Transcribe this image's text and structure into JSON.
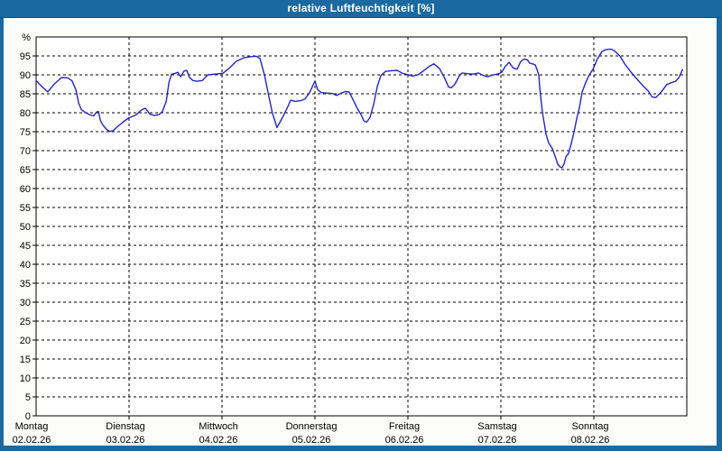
{
  "window": {
    "title": "relative Luftfeuchtigkeit [%]"
  },
  "colors": {
    "frame": "#1a69a0",
    "frame_edge_dark": "#11517e",
    "title_text": "#ffffff",
    "content_bg": "#fcfdfa",
    "plot_bg": "#ffffff",
    "grid": "#000000",
    "axis_text": "#000000",
    "line": "#2424c8"
  },
  "chart_data": {
    "type": "line",
    "title": "relative Luftfeuchtigkeit [%]",
    "ylabel": "%",
    "unit": "%",
    "ylim": [
      0,
      100
    ],
    "y_tick_step": 5,
    "y_tick_top_label": 95,
    "grid": "dashed",
    "legend_position": "none",
    "x_axis": {
      "hours_total": 168,
      "days": [
        {
          "name": "Montag",
          "date": "02.02.26"
        },
        {
          "name": "Dienstag",
          "date": "03.02.26"
        },
        {
          "name": "Mittwoch",
          "date": "04.02.26"
        },
        {
          "name": "Donnerstag",
          "date": "05.02.26"
        },
        {
          "name": "Freitag",
          "date": "06.02.26"
        },
        {
          "name": "Samstag",
          "date": "07.02.26"
        },
        {
          "name": "Sonntag",
          "date": "08.02.26"
        }
      ]
    },
    "series": [
      {
        "name": "relative Luftfeuchtigkeit [%]",
        "points_hour_value": [
          [
            0,
            88.5
          ],
          [
            1.4,
            87
          ],
          [
            3,
            85.5
          ],
          [
            4.7,
            87.6
          ],
          [
            6.6,
            89.3
          ],
          [
            8.2,
            89.2
          ],
          [
            9.3,
            88.4
          ],
          [
            10.3,
            86
          ],
          [
            11,
            82.5
          ],
          [
            11.7,
            80.8
          ],
          [
            12.8,
            80
          ],
          [
            14,
            79.4
          ],
          [
            14.9,
            79.2
          ],
          [
            15.6,
            80.2
          ],
          [
            16.1,
            80.3
          ],
          [
            16.6,
            78
          ],
          [
            17.2,
            76.8
          ],
          [
            18.2,
            75.6
          ],
          [
            18.9,
            75.1
          ],
          [
            19.8,
            75.2
          ],
          [
            21,
            76.3
          ],
          [
            22.4,
            77.5
          ],
          [
            24,
            78.7
          ],
          [
            25.6,
            79.3
          ],
          [
            27.3,
            80.8
          ],
          [
            28.2,
            81.2
          ],
          [
            29.4,
            79.6
          ],
          [
            30.5,
            79.3
          ],
          [
            31.7,
            79.5
          ],
          [
            32.6,
            80.3
          ],
          [
            33.6,
            83
          ],
          [
            34.3,
            88
          ],
          [
            35,
            90.2
          ],
          [
            35.9,
            90.4
          ],
          [
            36.6,
            90.7
          ],
          [
            37.3,
            89.5
          ],
          [
            38.2,
            91
          ],
          [
            38.9,
            91.2
          ],
          [
            39.6,
            89.3
          ],
          [
            40.5,
            88.5
          ],
          [
            41.5,
            88.3
          ],
          [
            42.9,
            88.5
          ],
          [
            44.3,
            90
          ],
          [
            46.1,
            90.2
          ],
          [
            48.2,
            90.4
          ],
          [
            49.9,
            91.8
          ],
          [
            51.7,
            93.6
          ],
          [
            53.6,
            94.5
          ],
          [
            55.4,
            94.8
          ],
          [
            56.9,
            94.9
          ],
          [
            57.8,
            94.3
          ],
          [
            59,
            89.8
          ],
          [
            60.1,
            84.3
          ],
          [
            61,
            79.9
          ],
          [
            62.2,
            76.1
          ],
          [
            63.6,
            78.7
          ],
          [
            64.8,
            81.2
          ],
          [
            65.7,
            83.3
          ],
          [
            66.9,
            83
          ],
          [
            68.3,
            83.2
          ],
          [
            69.4,
            83.6
          ],
          [
            70.6,
            85.3
          ],
          [
            72,
            88.3
          ],
          [
            72.7,
            86.1
          ],
          [
            73.6,
            85.3
          ],
          [
            75,
            85.2
          ],
          [
            76.4,
            85.1
          ],
          [
            77.6,
            84.6
          ],
          [
            78.8,
            85.2
          ],
          [
            79.9,
            85.6
          ],
          [
            80.8,
            85.5
          ],
          [
            81.8,
            83.5
          ],
          [
            83,
            81
          ],
          [
            83.9,
            79.5
          ],
          [
            84.6,
            77.9
          ],
          [
            85.3,
            77.5
          ],
          [
            86.2,
            78.7
          ],
          [
            87.1,
            82
          ],
          [
            88.1,
            87
          ],
          [
            89,
            89.8
          ],
          [
            90.2,
            90.9
          ],
          [
            91.6,
            91.1
          ],
          [
            93.2,
            91.2
          ],
          [
            94.6,
            90.4
          ],
          [
            95.8,
            90.1
          ],
          [
            97.2,
            89.7
          ],
          [
            98.6,
            90
          ],
          [
            100.2,
            91.2
          ],
          [
            101.6,
            92.3
          ],
          [
            102.7,
            92.9
          ],
          [
            104.2,
            91.6
          ],
          [
            105.3,
            89.5
          ],
          [
            106.5,
            86.8
          ],
          [
            107.2,
            86.6
          ],
          [
            108.1,
            87.5
          ],
          [
            109.3,
            89.8
          ],
          [
            110,
            90.5
          ],
          [
            111.4,
            90.3
          ],
          [
            112.8,
            90.2
          ],
          [
            114.2,
            90.5
          ],
          [
            115.3,
            89.9
          ],
          [
            116.5,
            89.5
          ],
          [
            117.7,
            89.9
          ],
          [
            118.6,
            90.1
          ],
          [
            119.5,
            90.3
          ],
          [
            120.2,
            90.7
          ],
          [
            121.2,
            92.3
          ],
          [
            122.1,
            93.3
          ],
          [
            123.2,
            91.8
          ],
          [
            124.2,
            91.5
          ],
          [
            125.1,
            93.5
          ],
          [
            126,
            94.2
          ],
          [
            126.8,
            94
          ],
          [
            127.4,
            93.1
          ],
          [
            128.2,
            92.9
          ],
          [
            128.9,
            92.6
          ],
          [
            129.3,
            91.5
          ],
          [
            129.8,
            89.9
          ],
          [
            130,
            87.1
          ],
          [
            130.3,
            84
          ],
          [
            130.7,
            80.4
          ],
          [
            131,
            78.4
          ],
          [
            131.4,
            76
          ],
          [
            131.6,
            74.5
          ],
          [
            132.3,
            72.1
          ],
          [
            133.3,
            70.5
          ],
          [
            134,
            68.5
          ],
          [
            134.7,
            66.4
          ],
          [
            135.4,
            65.6
          ],
          [
            135.8,
            65.5
          ],
          [
            136.3,
            66.5
          ],
          [
            136.8,
            68.4
          ],
          [
            137.5,
            69.3
          ],
          [
            138.2,
            72
          ],
          [
            138.9,
            75
          ],
          [
            139.6,
            78.5
          ],
          [
            140.3,
            81.5
          ],
          [
            141,
            85.5
          ],
          [
            141.9,
            88
          ],
          [
            142.8,
            90
          ],
          [
            143.8,
            91.5
          ],
          [
            144.9,
            94.2
          ],
          [
            146.1,
            96.2
          ],
          [
            147.2,
            96.7
          ],
          [
            148.4,
            96.8
          ],
          [
            149.3,
            96.4
          ],
          [
            150.7,
            95
          ],
          [
            152.1,
            92.7
          ],
          [
            153.7,
            90.6
          ],
          [
            155.3,
            88.7
          ],
          [
            156.7,
            87.1
          ],
          [
            158.1,
            85.7
          ],
          [
            159,
            84.2
          ],
          [
            160,
            84
          ],
          [
            161.4,
            85.5
          ],
          [
            162.8,
            87.4
          ],
          [
            163.9,
            87.9
          ],
          [
            165.1,
            88.3
          ],
          [
            166,
            89.3
          ],
          [
            166.9,
            91.4
          ]
        ]
      }
    ]
  }
}
